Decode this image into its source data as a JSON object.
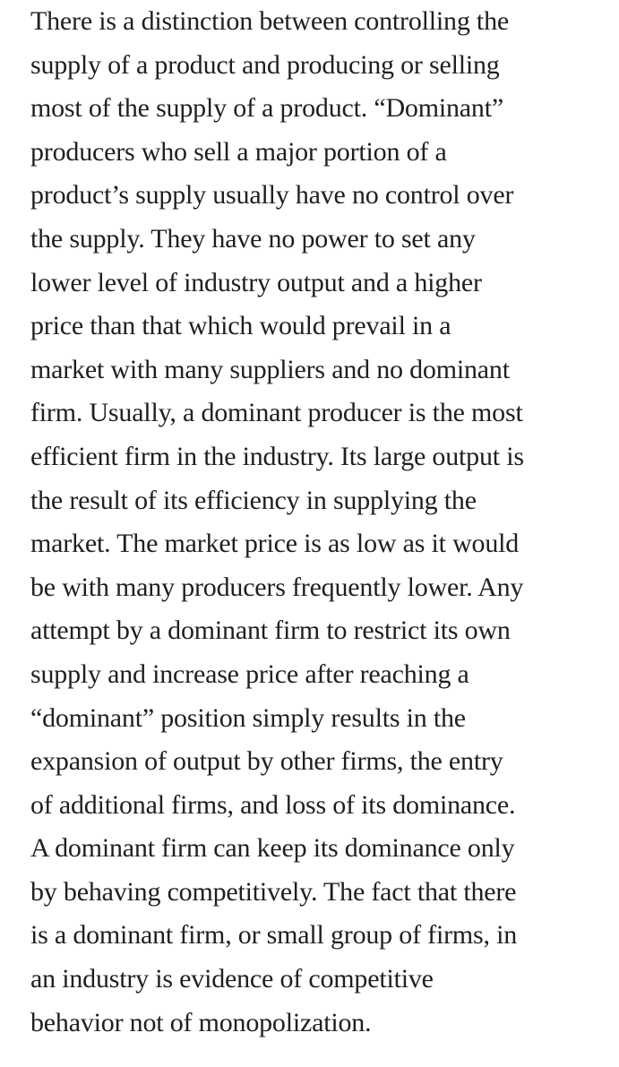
{
  "page": {
    "background_color": "#ffffff",
    "text_color": "#1f1f1f"
  },
  "document": {
    "paragraph_lines": [
      "There is a distinction between controlling the",
      "supply of a product and producing or selling",
      "most of the supply of a product. “Dominant”",
      "producers who sell a major portion of a",
      "product’s supply usually have no control over",
      "the supply. They have no power to set any",
      "lower level of industry output and a higher",
      "price than that which would prevail in a",
      "market with many suppliers and no dominant",
      "firm. Usually, a dominant producer is the most",
      "efficient firm in the industry. Its large output is",
      "the result of its efficiency in supplying the",
      "market. The market price is as low as it would",
      "be with many producers frequently lower. Any",
      "attempt by a dominant firm to restrict its own",
      "supply and increase price after reaching a",
      "“dominant” position simply results in the",
      "expansion of output by other firms, the entry",
      "of additional firms, and loss of its dominance.",
      "A dominant firm can keep its dominance only",
      "by behaving competitively. The fact that there",
      "is a dominant firm, or small group of firms, in",
      "an industry is evidence of competitive",
      "behavior not of monopolization."
    ]
  }
}
